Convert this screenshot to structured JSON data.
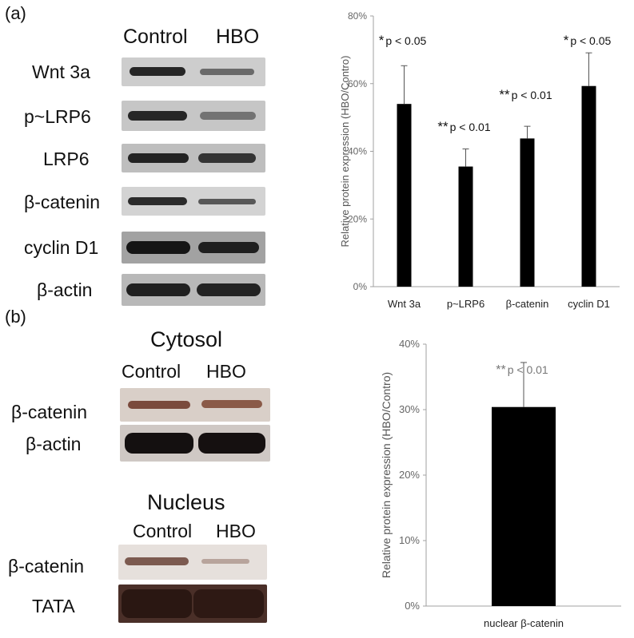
{
  "panel_a": {
    "letter": "(a)",
    "headers": [
      "Control",
      "HBO"
    ],
    "blots": [
      {
        "label": "Wnt 3a",
        "bg": "#cdcdcd",
        "control": "#262626",
        "hbo": "#6a6a6a"
      },
      {
        "label": "p~LRP6",
        "bg": "#c6c6c6",
        "control": "#262626",
        "hbo": "#737373"
      },
      {
        "label": "LRP6",
        "bg": "#bebebe",
        "control": "#232323",
        "hbo": "#343434"
      },
      {
        "label": "β-catenin",
        "bg": "#d3d3d3",
        "control": "#2b2b2b",
        "hbo": "#585858"
      },
      {
        "label": "cyclin D1",
        "bg": "#a2a2a2",
        "control": "#151515",
        "hbo": "#1f1f1f"
      },
      {
        "label": "β-actin",
        "bg": "#b8b8b8",
        "control": "#202020",
        "hbo": "#232323"
      }
    ]
  },
  "panel_b": {
    "letter": "(b)",
    "cytosol": {
      "title": "Cytosol",
      "headers": [
        "Control",
        "HBO"
      ],
      "blots": [
        {
          "label": "β-catenin",
          "bg": "#d9cfc8",
          "control": "#7a4a3c",
          "hbo": "#8a5a48"
        },
        {
          "label": "β-actin",
          "bg": "#cfc8c4",
          "control": "#141010",
          "hbo": "#151010"
        }
      ]
    },
    "nucleus": {
      "title": "Nucleus",
      "headers": [
        "Control",
        "HBO"
      ],
      "blots": [
        {
          "label": "β-catenin",
          "bg": "#e6e0dc",
          "control": "#7c5a50",
          "hbo": "#b8a49c"
        },
        {
          "label": "TATA",
          "bg": "#4a2f28",
          "control": "#2a1712",
          "hbo": "#2e1914"
        }
      ]
    }
  },
  "chart_data": [
    {
      "type": "bar",
      "ylabel": "Relative protein expression  (HBO/Contro)",
      "ylim": [
        0,
        80
      ],
      "yticks": [
        "0%",
        "20%",
        "40%",
        "60%",
        "80%"
      ],
      "categories": [
        "Wnt 3a",
        "p~LRP6",
        "β-catenin",
        "cyclin D1"
      ],
      "values": [
        54,
        35.5,
        43.8,
        59.3
      ],
      "errors": [
        11.3,
        5.2,
        3.6,
        9.8
      ],
      "annotations": [
        {
          "stars": "*",
          "text": "p < 0.05"
        },
        {
          "stars": "**",
          "text": "p < 0.01"
        },
        {
          "stars": "**",
          "text": "p < 0.01"
        },
        {
          "stars": "*",
          "text": "p < 0.05"
        }
      ],
      "bar_color": "#000000",
      "grid": false
    },
    {
      "type": "bar",
      "ylabel": "Relative protein expression  (HBO/Contro)",
      "ylim": [
        0,
        40
      ],
      "yticks": [
        "0%",
        "10%",
        "20%",
        "30%",
        "40%"
      ],
      "categories": [
        "nuclear β-catenin"
      ],
      "values": [
        30.4
      ],
      "errors": [
        6.8
      ],
      "annotations": [
        {
          "stars": "**",
          "text": "p < 0.01"
        }
      ],
      "bar_color": "#000000",
      "grid": false
    }
  ]
}
